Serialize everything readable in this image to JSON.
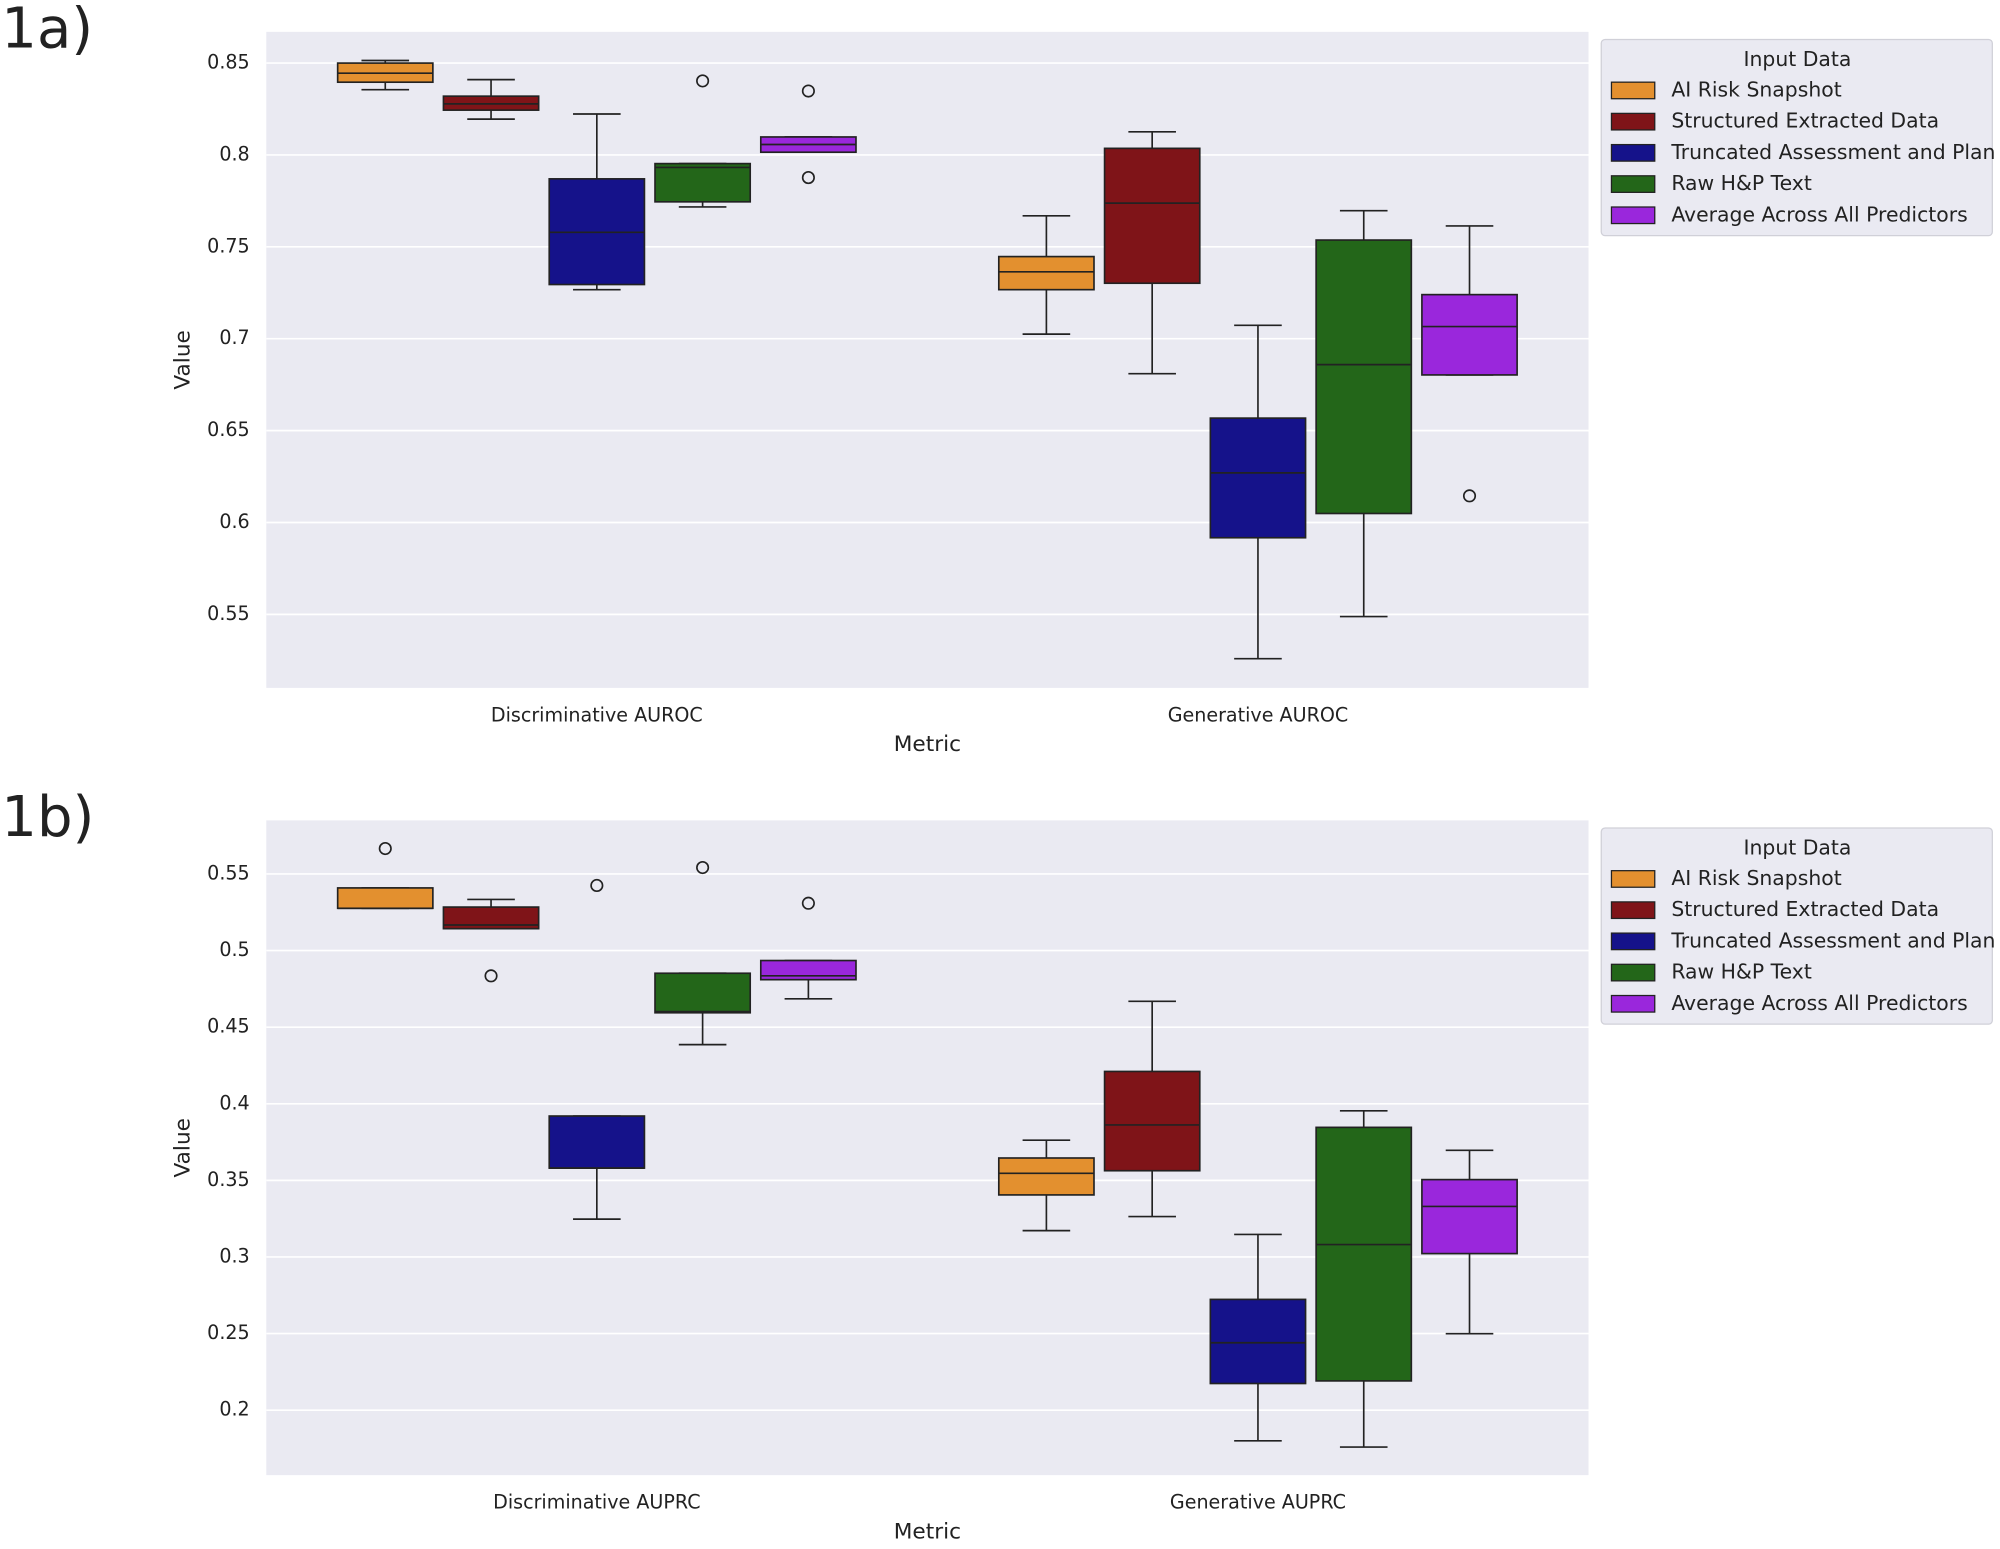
{
  "chart_data": [
    {
      "type": "box",
      "panel_label": "1a)",
      "xlabel": "Metric",
      "ylabel": "Value",
      "legend_title": "Input Data",
      "categories": [
        "Discriminative AUROC",
        "Generative AUROC"
      ],
      "ylim": [
        0.51,
        0.867
      ],
      "yticks": [
        0.55,
        0.6,
        0.65,
        0.7,
        0.75,
        0.8,
        0.85
      ],
      "grid": true,
      "series": [
        {
          "name": "AI Risk Snapshot",
          "color": "#e3902f",
          "values": [
            {
              "whislo": 0.8355,
              "q1": 0.8396,
              "med": 0.8445,
              "q3": 0.85,
              "whishi": 0.8514,
              "fliers": []
            },
            {
              "whislo": 0.7025,
              "q1": 0.7267,
              "med": 0.7364,
              "q3": 0.7447,
              "whishi": 0.7669,
              "fliers": []
            }
          ]
        },
        {
          "name": "Structured Extracted Data",
          "color": "#7f1418",
          "values": [
            {
              "whislo": 0.8195,
              "q1": 0.8244,
              "med": 0.8278,
              "q3": 0.832,
              "whishi": 0.841,
              "fliers": []
            },
            {
              "whislo": 0.681,
              "q1": 0.7302,
              "med": 0.7738,
              "q3": 0.8036,
              "whishi": 0.8126,
              "fliers": []
            }
          ]
        },
        {
          "name": "Truncated Assessment and Plan",
          "color": "#15128a",
          "values": [
            {
              "whislo": 0.7267,
              "q1": 0.7295,
              "med": 0.7579,
              "q3": 0.787,
              "whishi": 0.8223,
              "fliers": []
            },
            {
              "whislo": 0.5259,
              "q1": 0.5917,
              "med": 0.627,
              "q3": 0.6568,
              "whishi": 0.7073,
              "fliers": []
            }
          ]
        },
        {
          "name": "Raw H&P Text",
          "color": "#236619",
          "values": [
            {
              "whislo": 0.7717,
              "q1": 0.7745,
              "med": 0.7932,
              "q3": 0.7953,
              "whishi": 0.7953,
              "fliers": [
                0.8403
              ]
            },
            {
              "whislo": 0.5488,
              "q1": 0.6049,
              "med": 0.6859,
              "q3": 0.7537,
              "whishi": 0.7697,
              "fliers": []
            }
          ]
        },
        {
          "name": "Average Across All Predictors",
          "color": "#9a27dc",
          "values": [
            {
              "whislo": 0.8015,
              "q1": 0.8015,
              "med": 0.8057,
              "q3": 0.8098,
              "whishi": 0.8098,
              "fliers": [
                0.8348,
                0.7877
              ]
            },
            {
              "whislo": 0.6803,
              "q1": 0.6803,
              "med": 0.7066,
              "q3": 0.724,
              "whishi": 0.7614,
              "fliers": [
                0.6145
              ]
            }
          ]
        }
      ]
    },
    {
      "type": "box",
      "panel_label": "1b)",
      "xlabel": "Metric",
      "ylabel": "Value",
      "legend_title": "Input Data",
      "categories": [
        "Discriminative AUPRC",
        "Generative AUPRC"
      ],
      "ylim": [
        0.1576,
        0.585
      ],
      "yticks": [
        0.2,
        0.25,
        0.3,
        0.35,
        0.4,
        0.45,
        0.5,
        0.55
      ],
      "grid": true,
      "series": [
        {
          "name": "AI Risk Snapshot",
          "color": "#e3902f",
          "values": [
            {
              "whislo": 0.5276,
              "q1": 0.5276,
              "med": 0.5276,
              "q3": 0.5409,
              "whishi": 0.5409,
              "fliers": [
                0.5666
              ]
            },
            {
              "whislo": 0.3172,
              "q1": 0.3405,
              "med": 0.3546,
              "q3": 0.3646,
              "whishi": 0.3762,
              "fliers": []
            }
          ]
        },
        {
          "name": "Structured Extracted Data",
          "color": "#7f1418",
          "values": [
            {
              "whislo": 0.5143,
              "q1": 0.5143,
              "med": 0.5167,
              "q3": 0.5284,
              "whishi": 0.5334,
              "fliers": [
                0.4835
              ]
            },
            {
              "whislo": 0.3264,
              "q1": 0.3563,
              "med": 0.3862,
              "q3": 0.4211,
              "whishi": 0.4669,
              "fliers": []
            }
          ]
        },
        {
          "name": "Truncated Assessment and Plan",
          "color": "#15128a",
          "values": [
            {
              "whislo": 0.3247,
              "q1": 0.358,
              "med": 0.358,
              "q3": 0.392,
              "whishi": 0.392,
              "fliers": [
                0.5425
              ]
            },
            {
              "whislo": 0.18,
              "q1": 0.2174,
              "med": 0.244,
              "q3": 0.2723,
              "whishi": 0.3147,
              "fliers": []
            }
          ]
        },
        {
          "name": "Raw H&P Text",
          "color": "#236619",
          "values": [
            {
              "whislo": 0.4386,
              "q1": 0.4594,
              "med": 0.4602,
              "q3": 0.4852,
              "whishi": 0.4852,
              "fliers": [
                0.5542
              ]
            },
            {
              "whislo": 0.1759,
              "q1": 0.2191,
              "med": 0.3081,
              "q3": 0.3846,
              "whishi": 0.3954,
              "fliers": []
            }
          ]
        },
        {
          "name": "Average Across All Predictors",
          "color": "#9a27dc",
          "values": [
            {
              "whislo": 0.4685,
              "q1": 0.481,
              "med": 0.4835,
              "q3": 0.4935,
              "whishi": 0.4935,
              "fliers": [
                0.5309
              ]
            },
            {
              "whislo": 0.2499,
              "q1": 0.3022,
              "med": 0.333,
              "q3": 0.3505,
              "whishi": 0.3696,
              "fliers": []
            }
          ]
        }
      ]
    }
  ]
}
